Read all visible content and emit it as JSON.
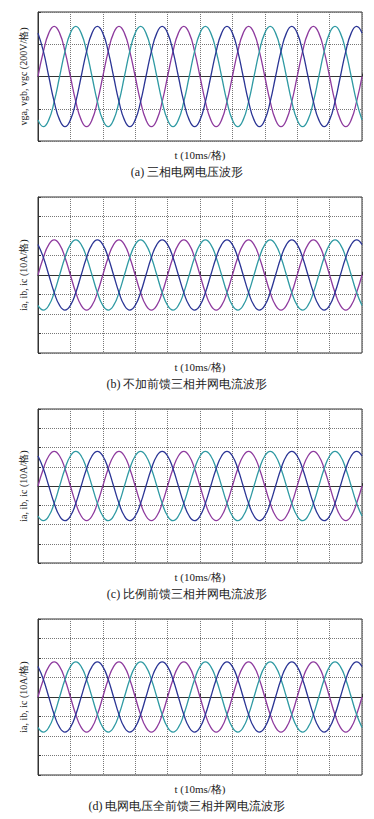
{
  "chart_data": [
    {
      "type": "line",
      "title": "(a) 三相电网电压波形",
      "xlabel": "t (10ms/格)",
      "ylabel": "vga, vgb, vgc (200V/格)",
      "x": [
        0,
        1.67,
        3.33,
        5,
        6.67,
        8.33,
        10,
        11.67,
        13.33,
        15,
        16.67,
        18.33,
        20,
        21.67,
        23.33,
        25,
        26.67,
        28.33,
        30,
        31.67,
        33.33,
        35,
        36.67,
        38.33,
        40,
        41.67,
        43.33,
        45,
        46.67,
        48.33,
        50,
        51.67,
        53.33,
        55,
        56.67,
        58.33,
        60,
        61.67,
        63.33,
        65,
        66.67,
        68.33,
        70,
        71.67,
        73.33,
        75,
        76.67,
        78.33,
        80,
        81.67,
        83.33,
        85,
        86.67,
        88.33,
        90,
        91.67,
        93.33,
        95,
        96.67,
        98.33,
        100
      ],
      "series": [
        {
          "color": "#8e3b9e",
          "values": [
            0,
            156,
            269,
            311,
            269,
            156,
            0,
            -156,
            -269,
            -311,
            -269,
            -156,
            0,
            156,
            269,
            311,
            269,
            156,
            0,
            -156,
            -269,
            -311,
            -269,
            -156,
            0,
            156,
            269,
            311,
            269,
            156,
            0,
            -156,
            -269,
            -311,
            -269,
            -156,
            0,
            156,
            269,
            311,
            269,
            156,
            0,
            -156,
            -269,
            -311,
            -269,
            -156,
            0,
            156,
            269,
            311,
            269,
            156,
            0,
            -156,
            -269,
            -311,
            -269,
            -156,
            0
          ]
        },
        {
          "color": "#2f9aa3",
          "values": [
            -269,
            -311,
            -269,
            -156,
            0,
            156,
            269,
            311,
            269,
            156,
            0,
            -156,
            -269,
            -311,
            -269,
            -156,
            0,
            156,
            269,
            311,
            269,
            156,
            0,
            -156,
            -269,
            -311,
            -269,
            -156,
            0,
            156,
            269,
            311,
            269,
            156,
            0,
            -156,
            -269,
            -311,
            -269,
            -156,
            0,
            156,
            269,
            311,
            269,
            156,
            0,
            -156,
            -269,
            -311,
            -269,
            -156,
            0,
            156,
            269,
            311,
            269,
            156,
            0,
            -156,
            -269
          ]
        },
        {
          "color": "#2b3595",
          "values": [
            269,
            156,
            0,
            -156,
            -269,
            -311,
            -269,
            -156,
            0,
            156,
            269,
            311,
            269,
            156,
            0,
            -156,
            -269,
            -311,
            -269,
            -156,
            0,
            156,
            269,
            311,
            269,
            156,
            0,
            -156,
            -269,
            -311,
            -269,
            -156,
            0,
            156,
            269,
            311,
            269,
            156,
            0,
            -156,
            -269,
            -311,
            -269,
            -156,
            0,
            156,
            269,
            311,
            269,
            156,
            0,
            -156,
            -269,
            -311,
            -269,
            -156,
            0,
            156,
            269,
            311,
            269
          ]
        }
      ],
      "xlim": [
        0,
        100
      ],
      "xticks": [
        0,
        10,
        20,
        30,
        40,
        50,
        60,
        70,
        80,
        90,
        100
      ],
      "ylim": [
        -400,
        400
      ],
      "yticks": [
        -400,
        -200,
        0,
        200,
        400
      ],
      "grid": true,
      "tick_labels": false
    },
    {
      "type": "line",
      "title": "(b) 不加前馈三相并网电流波形",
      "xlabel": "t (10ms/格)",
      "ylabel": "ia, ib, ic (10A/格)",
      "x": [
        0,
        1.67,
        3.33,
        5,
        6.67,
        8.33,
        10,
        11.67,
        13.33,
        15,
        16.67,
        18.33,
        20,
        21.67,
        23.33,
        25,
        26.67,
        28.33,
        30,
        31.67,
        33.33,
        35,
        36.67,
        38.33,
        40,
        41.67,
        43.33,
        45,
        46.67,
        48.33,
        50,
        51.67,
        53.33,
        55,
        56.67,
        58.33,
        60,
        61.67,
        63.33,
        65,
        66.67,
        68.33,
        70,
        71.67,
        73.33,
        75,
        76.67,
        78.33,
        80,
        81.67,
        83.33,
        85,
        86.67,
        88.33,
        90,
        91.67,
        93.33,
        95,
        96.67,
        98.33,
        100
      ],
      "series": [
        {
          "color": "#8e3b9e",
          "values": [
            0,
            9,
            15.6,
            18,
            15.6,
            9,
            0,
            -9,
            -15.6,
            -18,
            -15.6,
            -9,
            0,
            9,
            15.6,
            18,
            15.6,
            9,
            0,
            -9,
            -15.6,
            -18,
            -15.6,
            -9,
            0,
            9,
            15.6,
            18,
            15.6,
            9,
            0,
            -9,
            -15.6,
            -18,
            -15.6,
            -9,
            0,
            9,
            15.6,
            18,
            15.6,
            9,
            0,
            -9,
            -15.6,
            -18,
            -15.6,
            -9,
            0,
            9,
            15.6,
            18,
            15.6,
            9,
            0,
            -9,
            -15.6,
            -18,
            -15.6,
            -9,
            0
          ]
        },
        {
          "color": "#2f9aa3",
          "values": [
            -15.6,
            -18,
            -15.6,
            -9,
            0,
            9,
            15.6,
            18,
            15.6,
            9,
            0,
            -9,
            -15.6,
            -18,
            -15.6,
            -9,
            0,
            9,
            15.6,
            18,
            15.6,
            9,
            0,
            -9,
            -15.6,
            -18,
            -15.6,
            -9,
            0,
            9,
            15.6,
            18,
            15.6,
            9,
            0,
            -9,
            -15.6,
            -18,
            -15.6,
            -9,
            0,
            9,
            15.6,
            18,
            15.6,
            9,
            0,
            -9,
            -15.6,
            -18,
            -15.6,
            -9,
            0,
            9,
            15.6,
            18,
            15.6,
            9,
            0,
            -9,
            -15.6
          ]
        },
        {
          "color": "#2b3595",
          "values": [
            15.6,
            9,
            0,
            -9,
            -15.6,
            -18,
            -15.6,
            -9,
            0,
            9,
            15.6,
            18,
            15.6,
            9,
            0,
            -9,
            -15.6,
            -18,
            -15.6,
            -9,
            0,
            9,
            15.6,
            18,
            15.6,
            9,
            0,
            -9,
            -15.6,
            -18,
            -15.6,
            -9,
            0,
            9,
            15.6,
            18,
            15.6,
            9,
            0,
            -9,
            -15.6,
            -18,
            -15.6,
            -9,
            0,
            9,
            15.6,
            18,
            15.6,
            9,
            0,
            -9,
            -15.6,
            -18,
            -15.6,
            -9,
            0,
            9,
            15.6,
            18,
            15.6
          ]
        }
      ],
      "xlim": [
        0,
        100
      ],
      "xticks": [
        0,
        10,
        20,
        30,
        40,
        50,
        60,
        70,
        80,
        90,
        100
      ],
      "ylim": [
        -40,
        40
      ],
      "yticks": [
        -40,
        -30,
        -20,
        -10,
        0,
        10,
        20,
        30,
        40
      ],
      "grid": true,
      "tick_labels": false
    },
    {
      "type": "line",
      "title": "(c) 比例前馈三相并网电流波形",
      "xlabel": "t (10ms/格)",
      "ylabel": "ia, ib, ic (10A/格)",
      "x": [
        0,
        1.67,
        3.33,
        5,
        6.67,
        8.33,
        10,
        11.67,
        13.33,
        15,
        16.67,
        18.33,
        20,
        21.67,
        23.33,
        25,
        26.67,
        28.33,
        30,
        31.67,
        33.33,
        35,
        36.67,
        38.33,
        40,
        41.67,
        43.33,
        45,
        46.67,
        48.33,
        50,
        51.67,
        53.33,
        55,
        56.67,
        58.33,
        60,
        61.67,
        63.33,
        65,
        66.67,
        68.33,
        70,
        71.67,
        73.33,
        75,
        76.67,
        78.33,
        80,
        81.67,
        83.33,
        85,
        86.67,
        88.33,
        90,
        91.67,
        93.33,
        95,
        96.67,
        98.33,
        100
      ],
      "series": [
        {
          "color": "#8e3b9e",
          "values": [
            0,
            9,
            15.6,
            18,
            15.6,
            9,
            0,
            -9,
            -15.6,
            -18,
            -15.6,
            -9,
            0,
            9,
            15.6,
            18,
            15.6,
            9,
            0,
            -9,
            -15.6,
            -18,
            -15.6,
            -9,
            0,
            9,
            15.6,
            18,
            15.6,
            9,
            0,
            -9,
            -15.6,
            -18,
            -15.6,
            -9,
            0,
            9,
            15.6,
            18,
            15.6,
            9,
            0,
            -9,
            -15.6,
            -18,
            -15.6,
            -9,
            0,
            9,
            15.6,
            18,
            15.6,
            9,
            0,
            -9,
            -15.6,
            -18,
            -15.6,
            -9,
            0
          ]
        },
        {
          "color": "#2f9aa3",
          "values": [
            -15.6,
            -18,
            -15.6,
            -9,
            0,
            9,
            15.6,
            18,
            15.6,
            9,
            0,
            -9,
            -15.6,
            -18,
            -15.6,
            -9,
            0,
            9,
            15.6,
            18,
            15.6,
            9,
            0,
            -9,
            -15.6,
            -18,
            -15.6,
            -9,
            0,
            9,
            15.6,
            18,
            15.6,
            9,
            0,
            -9,
            -15.6,
            -18,
            -15.6,
            -9,
            0,
            9,
            15.6,
            18,
            15.6,
            9,
            0,
            -9,
            -15.6,
            -18,
            -15.6,
            -9,
            0,
            9,
            15.6,
            18,
            15.6,
            9,
            0,
            -9,
            -15.6
          ]
        },
        {
          "color": "#2b3595",
          "values": [
            15.6,
            9,
            0,
            -9,
            -15.6,
            -18,
            -15.6,
            -9,
            0,
            9,
            15.6,
            18,
            15.6,
            9,
            0,
            -9,
            -15.6,
            -18,
            -15.6,
            -9,
            0,
            9,
            15.6,
            18,
            15.6,
            9,
            0,
            -9,
            -15.6,
            -18,
            -15.6,
            -9,
            0,
            9,
            15.6,
            18,
            15.6,
            9,
            0,
            -9,
            -15.6,
            -18,
            -15.6,
            -9,
            0,
            9,
            15.6,
            18,
            15.6,
            9,
            0,
            -9,
            -15.6,
            -18,
            -15.6,
            -9,
            0,
            9,
            15.6,
            18,
            15.6
          ]
        }
      ],
      "xlim": [
        0,
        100
      ],
      "xticks": [
        0,
        10,
        20,
        30,
        40,
        50,
        60,
        70,
        80,
        90,
        100
      ],
      "ylim": [
        -40,
        40
      ],
      "yticks": [
        -40,
        -30,
        -20,
        -10,
        0,
        10,
        20,
        30,
        40
      ],
      "grid": true,
      "tick_labels": false
    },
    {
      "type": "line",
      "title": "(d) 电网电压全前馈三相并网电流波形",
      "xlabel": "t (10ms/格)",
      "ylabel": "ia, ib, ic (10A/格)",
      "x": [
        0,
        1.67,
        3.33,
        5,
        6.67,
        8.33,
        10,
        11.67,
        13.33,
        15,
        16.67,
        18.33,
        20,
        21.67,
        23.33,
        25,
        26.67,
        28.33,
        30,
        31.67,
        33.33,
        35,
        36.67,
        38.33,
        40,
        41.67,
        43.33,
        45,
        46.67,
        48.33,
        50,
        51.67,
        53.33,
        55,
        56.67,
        58.33,
        60,
        61.67,
        63.33,
        65,
        66.67,
        68.33,
        70,
        71.67,
        73.33,
        75,
        76.67,
        78.33,
        80,
        81.67,
        83.33,
        85,
        86.67,
        88.33,
        90,
        91.67,
        93.33,
        95,
        96.67,
        98.33,
        100
      ],
      "series": [
        {
          "color": "#8e3b9e",
          "values": [
            0,
            9,
            15.6,
            18,
            15.6,
            9,
            0,
            -9,
            -15.6,
            -18,
            -15.6,
            -9,
            0,
            9,
            15.6,
            18,
            15.6,
            9,
            0,
            -9,
            -15.6,
            -18,
            -15.6,
            -9,
            0,
            9,
            15.6,
            18,
            15.6,
            9,
            0,
            -9,
            -15.6,
            -18,
            -15.6,
            -9,
            0,
            9,
            15.6,
            18,
            15.6,
            9,
            0,
            -9,
            -15.6,
            -18,
            -15.6,
            -9,
            0,
            9,
            15.6,
            18,
            15.6,
            9,
            0,
            -9,
            -15.6,
            -18,
            -15.6,
            -9,
            0
          ]
        },
        {
          "color": "#2f9aa3",
          "values": [
            -15.6,
            -18,
            -15.6,
            -9,
            0,
            9,
            15.6,
            18,
            15.6,
            9,
            0,
            -9,
            -15.6,
            -18,
            -15.6,
            -9,
            0,
            9,
            15.6,
            18,
            15.6,
            9,
            0,
            -9,
            -15.6,
            -18,
            -15.6,
            -9,
            0,
            9,
            15.6,
            18,
            15.6,
            9,
            0,
            -9,
            -15.6,
            -18,
            -15.6,
            -9,
            0,
            9,
            15.6,
            18,
            15.6,
            9,
            0,
            -9,
            -15.6,
            -18,
            -15.6,
            -9,
            0,
            9,
            15.6,
            18,
            15.6,
            9,
            0,
            -9,
            -15.6
          ]
        },
        {
          "color": "#2b3595",
          "values": [
            15.6,
            9,
            0,
            -9,
            -15.6,
            -18,
            -15.6,
            -9,
            0,
            9,
            15.6,
            18,
            15.6,
            9,
            0,
            -9,
            -15.6,
            -18,
            -15.6,
            -9,
            0,
            9,
            15.6,
            18,
            15.6,
            9,
            0,
            -9,
            -15.6,
            -18,
            -15.6,
            -9,
            0,
            9,
            15.6,
            18,
            15.6,
            9,
            0,
            -9,
            -15.6,
            -18,
            -15.6,
            -9,
            0,
            9,
            15.6,
            18,
            15.6,
            9,
            0,
            -9,
            -15.6,
            -18,
            -15.6,
            -9,
            0,
            9,
            15.6,
            18,
            15.6
          ]
        }
      ],
      "xlim": [
        0,
        100
      ],
      "xticks": [
        0,
        10,
        20,
        30,
        40,
        50,
        60,
        70,
        80,
        90,
        100
      ],
      "ylim": [
        -40,
        40
      ],
      "yticks": [
        -40,
        -30,
        -20,
        -10,
        0,
        10,
        20,
        30,
        40
      ],
      "grid": true,
      "tick_labels": false
    }
  ]
}
